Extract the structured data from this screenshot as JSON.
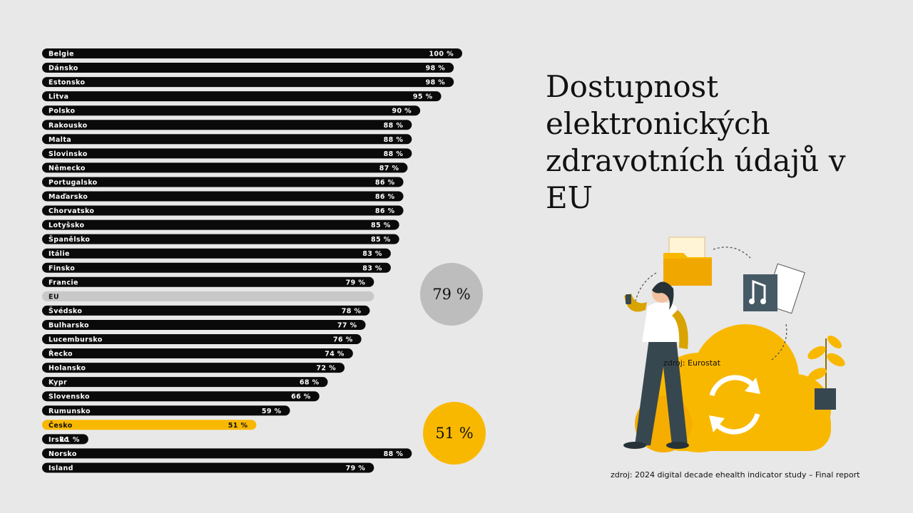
{
  "title": "Dostupnost elektronických zdravotních údajů v EU",
  "eu_badge": "79 %",
  "cz_badge": "51 %",
  "source_eurostat": "zdroj: Eurostat",
  "source_report": "zdroj: 2024 digital decade ehealth indicator study – Final report",
  "colors": {
    "bar": "#0a0a0a",
    "highlight": "#f9b800",
    "eu": "#c8c8c8",
    "text_on_bar": "#ffffff",
    "background": "#e8e8e8"
  },
  "chart_data": {
    "type": "bar",
    "orientation": "horizontal",
    "xlim": [
      0,
      100
    ],
    "categories": [
      "Belgie",
      "Dánsko",
      "Estonsko",
      "Litva",
      "Polsko",
      "Rakousko",
      "Malta",
      "Slovinsko",
      "Německo",
      "Portugalsko",
      "Maďarsko",
      "Chorvatsko",
      "Lotyšsko",
      "Španělsko",
      "Itálie",
      "Finsko",
      "Francie",
      "EU",
      "Švédsko",
      "Bulharsko",
      "Lucembursko",
      "Řecko",
      "Holansko",
      "Kypr",
      "Slovensko",
      "Rumunsko",
      "Česko",
      "Irsko",
      "Norsko",
      "Island"
    ],
    "values": [
      100,
      98,
      98,
      95,
      90,
      88,
      88,
      88,
      87,
      86,
      86,
      86,
      85,
      85,
      83,
      83,
      79,
      null,
      78,
      77,
      76,
      74,
      72,
      68,
      66,
      59,
      51,
      11,
      88,
      79
    ],
    "value_labels": [
      "100 %",
      "98 %",
      "98 %",
      "95 %",
      "90 %",
      "88 %",
      "88 %",
      "88 %",
      "87 %",
      "86 %",
      "86 %",
      "86 %",
      "85 %",
      "85 %",
      "83 %",
      "83 %",
      "79 %",
      "",
      "78 %",
      "77 %",
      "76 %",
      "74 %",
      "72 %",
      "68 %",
      "66 %",
      "59 %",
      "51 %",
      "11 %",
      "88 %",
      "79 %"
    ],
    "highlight": "Česko",
    "average": {
      "name": "EU",
      "value": 79
    }
  }
}
